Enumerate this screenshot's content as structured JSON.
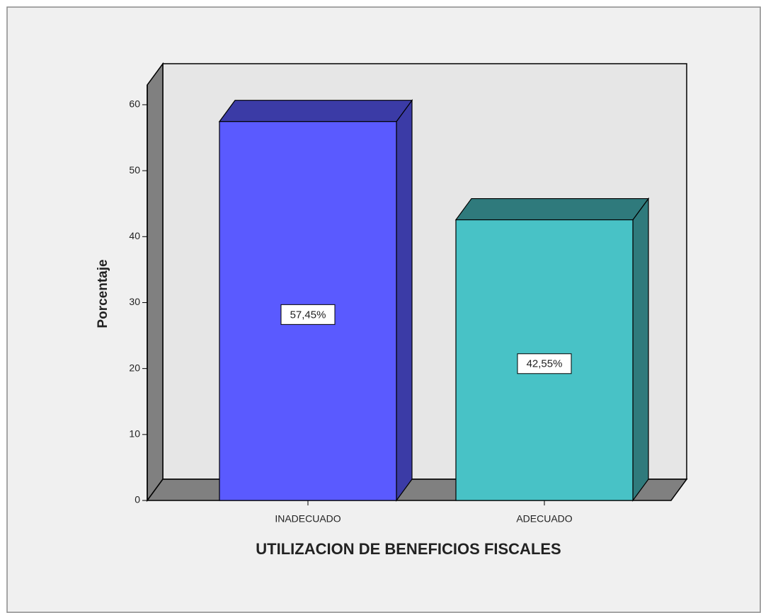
{
  "chart_data": {
    "type": "bar",
    "xlabel": "UTILIZACION DE BENEFICIOS FISCALES",
    "ylabel": "Porcentaje",
    "categories": [
      "INADECUADO",
      "ADECUADO"
    ],
    "values": [
      57.45,
      42.55
    ],
    "value_labels": [
      "57,45%",
      "42,55%"
    ],
    "colors": [
      "#5a5aff",
      "#48c2c6"
    ],
    "shade_colors": [
      "#3b3ba6",
      "#2f7a7c"
    ],
    "ylim": [
      0,
      63
    ],
    "yticks": [
      0,
      10,
      20,
      30,
      40,
      50,
      60
    ]
  }
}
